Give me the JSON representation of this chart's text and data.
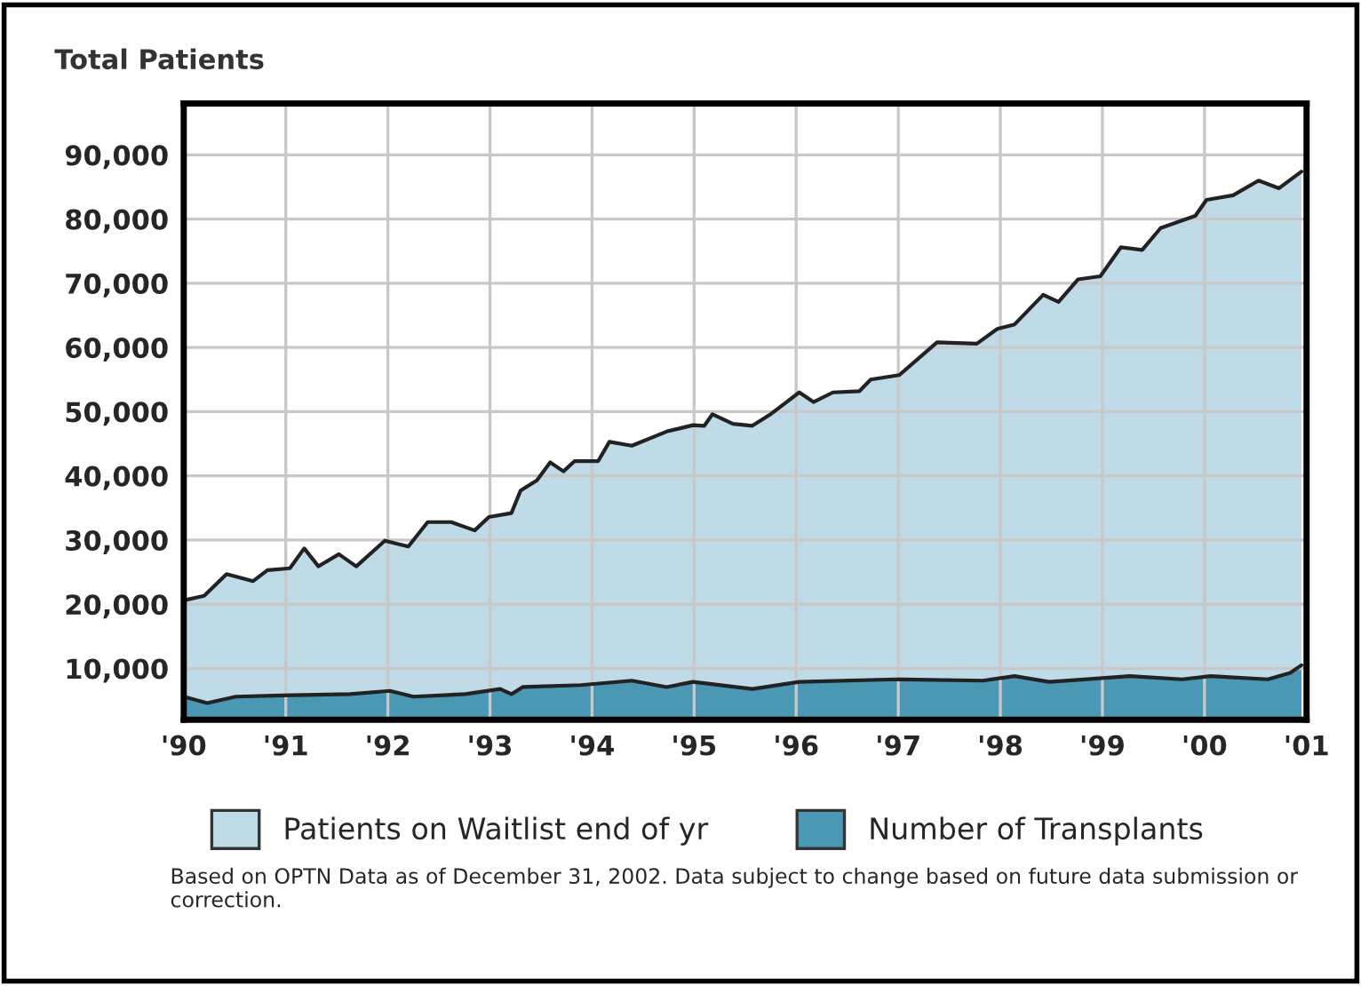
{
  "chart_data": {
    "type": "area",
    "title": "Total Patients",
    "annotations": [
      "Based on OPTN Data as of December 31, 2002. Data subject to change based on future data submission or correction."
    ],
    "series": [
      {
        "name": "Patients on Waitlist end of yr",
        "color": "#bfdbe7",
        "x": [
          1990.0,
          1990.2,
          1990.42,
          1990.68,
          1990.82,
          1991.04,
          1991.18,
          1991.32,
          1991.52,
          1991.69,
          1991.97,
          1992.2,
          1992.39,
          1992.62,
          1992.85,
          1992.99,
          1993.21,
          1993.3,
          1993.46,
          1993.59,
          1993.72,
          1993.83,
          1994.06,
          1994.17,
          1994.39,
          1994.73,
          1994.99,
          1995.1,
          1995.18,
          1995.38,
          1995.57,
          1995.74,
          1996.03,
          1996.17,
          1996.36,
          1996.62,
          1996.73,
          1997.01,
          1997.38,
          1997.77,
          1997.97,
          1998.14,
          1998.42,
          1998.57,
          1998.76,
          1998.98,
          1999.18,
          1999.39,
          1999.57,
          1999.91,
          2000.02,
          2000.28,
          2000.53,
          2000.73,
          2000.95
        ],
        "values": [
          20600,
          21300,
          24700,
          23600,
          25300,
          25600,
          28700,
          25900,
          27800,
          25900,
          29900,
          29000,
          32800,
          32800,
          31500,
          33600,
          34200,
          37700,
          39300,
          42100,
          40700,
          42300,
          42300,
          45300,
          44700,
          46900,
          47900,
          47800,
          49600,
          48100,
          47800,
          49500,
          53000,
          51500,
          53000,
          53200,
          55000,
          55700,
          60800,
          60600,
          62900,
          63600,
          68200,
          67100,
          70600,
          71100,
          75600,
          75200,
          78600,
          80500,
          83000,
          83700,
          86000,
          84800,
          87400
        ]
      },
      {
        "name": "Number of Transplants",
        "color": "#4a98b4",
        "x": [
          1990.0,
          1990.23,
          1990.51,
          1990.96,
          1991.63,
          1992.02,
          1992.25,
          1992.76,
          1993.1,
          1993.21,
          1993.32,
          1993.89,
          1994.39,
          1994.73,
          1994.99,
          1995.57,
          1996.03,
          1996.98,
          1997.83,
          1998.14,
          1998.48,
          1999.27,
          1999.78,
          2000.06,
          2000.62,
          2000.84,
          2000.95
        ],
        "values": [
          5600,
          4600,
          5600,
          5800,
          6000,
          6500,
          5600,
          6000,
          6800,
          6000,
          7100,
          7400,
          8100,
          7100,
          7900,
          6800,
          7900,
          8300,
          8100,
          8800,
          7900,
          8800,
          8300,
          8800,
          8300,
          9300,
          10500
        ]
      }
    ],
    "xlim": [
      1990,
      2001.0
    ],
    "xticks": [
      {
        "value": 1990,
        "label": "'90"
      },
      {
        "value": 1991,
        "label": "'91"
      },
      {
        "value": 1992,
        "label": "'92"
      },
      {
        "value": 1993,
        "label": "'93"
      },
      {
        "value": 1994,
        "label": "'94"
      },
      {
        "value": 1995,
        "label": "'95"
      },
      {
        "value": 1996,
        "label": "'96"
      },
      {
        "value": 1997,
        "label": "'97"
      },
      {
        "value": 1998,
        "label": "'98"
      },
      {
        "value": 1999,
        "label": "'99"
      },
      {
        "value": 2000,
        "label": "'00"
      },
      {
        "value": 2001,
        "label": "'01"
      }
    ],
    "ylim": [
      2000,
      98000
    ],
    "yticks": [
      {
        "value": 10000,
        "label": "10,000"
      },
      {
        "value": 20000,
        "label": "20,000"
      },
      {
        "value": 30000,
        "label": "30,000"
      },
      {
        "value": 40000,
        "label": "40,000"
      },
      {
        "value": 50000,
        "label": "50,000"
      },
      {
        "value": 60000,
        "label": "60,000"
      },
      {
        "value": 70000,
        "label": "70,000"
      },
      {
        "value": 80000,
        "label": "80,000"
      },
      {
        "value": 90000,
        "label": "90,000"
      }
    ],
    "grid": true,
    "legend": "bottom"
  }
}
